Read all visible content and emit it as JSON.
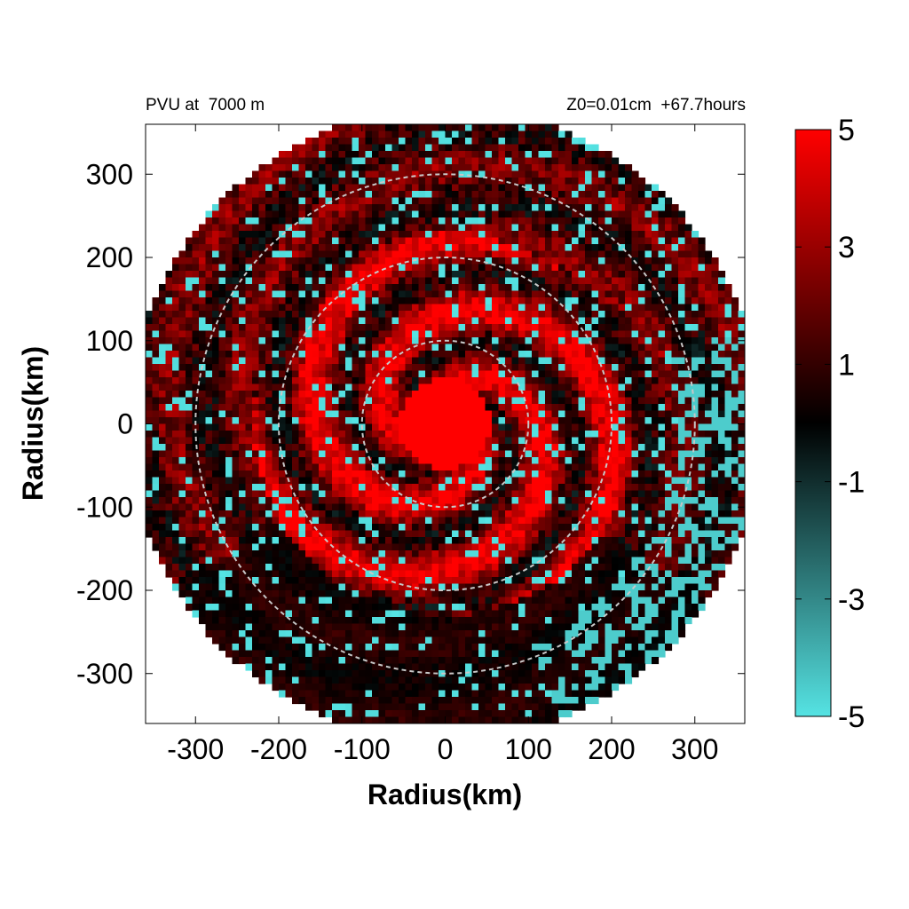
{
  "chart_data": {
    "type": "heatmap",
    "title_left": "PVU at  7000 m",
    "title_right": "Z0=0.01cm  +67.7hours",
    "xlabel": "Radius(km)",
    "ylabel": "Radius(km)",
    "xlim": [
      -360,
      360
    ],
    "ylim": [
      -360,
      360
    ],
    "xticks": [
      -300,
      -200,
      -100,
      0,
      100,
      200,
      300
    ],
    "yticks": [
      -300,
      -200,
      -100,
      0,
      100,
      200,
      300
    ],
    "domain_radius_km": 380,
    "range_rings_km": [
      100,
      200,
      300
    ],
    "colorbar": {
      "min": -5,
      "max": 5,
      "ticks": [
        5,
        3,
        1,
        -1,
        -3,
        -5
      ],
      "colors": [
        "#55e3e3",
        "#000000",
        "#ff0000"
      ]
    },
    "field_description_values": {
      "core_radius_km": 55,
      "core_value": 5,
      "grid_step_km": 8
    },
    "colors": {
      "positive": "#ff0000",
      "neutral": "#000000",
      "negative": "#55e3e3",
      "ring": "#c8c8c8"
    }
  }
}
